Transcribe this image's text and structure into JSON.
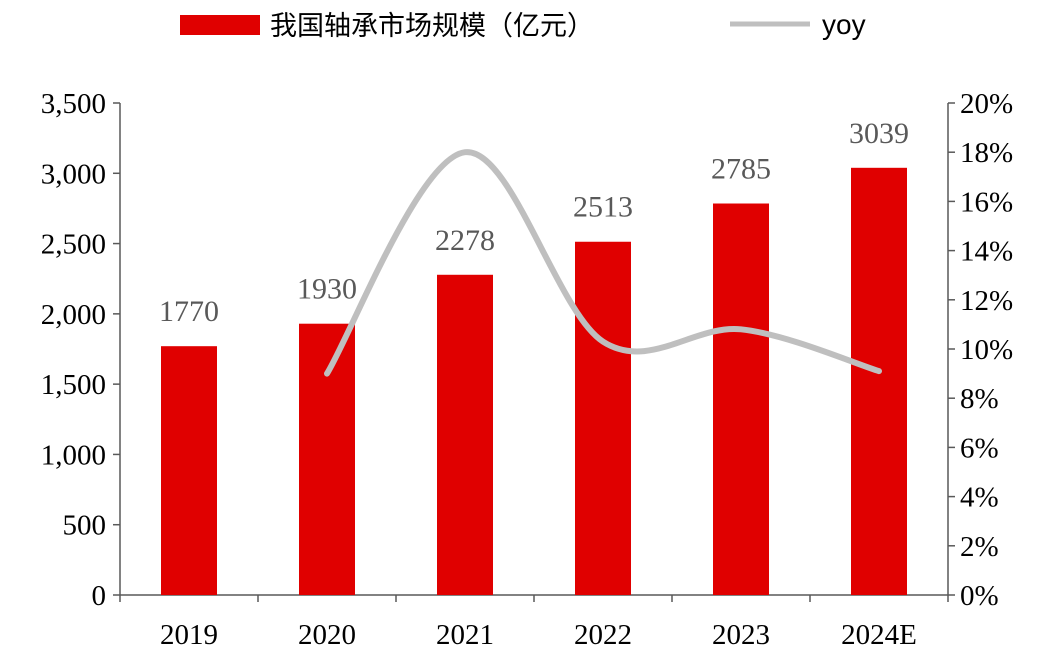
{
  "chart_data": {
    "type": "bar",
    "categories": [
      "2019",
      "2020",
      "2021",
      "2022",
      "2023",
      "2024E"
    ],
    "series": [
      {
        "name": "我国轴承市场规模（亿元）",
        "type": "bar",
        "axis": "left",
        "color": "#E00000",
        "values": [
          1770,
          1930,
          2278,
          2513,
          2785,
          3039
        ],
        "data_labels": [
          "1770",
          "1930",
          "2278",
          "2513",
          "2785",
          "3039"
        ]
      },
      {
        "name": "yoy",
        "type": "line",
        "axis": "right",
        "smooth": true,
        "color": "#BFBFBF",
        "values": [
          null,
          0.09,
          0.18,
          0.103,
          0.108,
          0.091
        ]
      }
    ],
    "y_left": {
      "ylim": [
        0,
        3500
      ],
      "ticks": [
        0,
        500,
        1000,
        1500,
        2000,
        2500,
        3000,
        3500
      ],
      "tick_labels": [
        "0",
        "500",
        "1,000",
        "1,500",
        "2,000",
        "2,500",
        "3,000",
        "3,500"
      ]
    },
    "y_right": {
      "ylim": [
        0,
        0.2
      ],
      "ticks": [
        0,
        0.02,
        0.04,
        0.06,
        0.08,
        0.1,
        0.12,
        0.14,
        0.16,
        0.18,
        0.2
      ],
      "tick_labels": [
        "0%",
        "2%",
        "4%",
        "6%",
        "8%",
        "10%",
        "12%",
        "14%",
        "16%",
        "18%",
        "20%"
      ]
    },
    "legend_position": "top",
    "grid": false,
    "axis_color": "#595959",
    "label_color": "#595959"
  }
}
